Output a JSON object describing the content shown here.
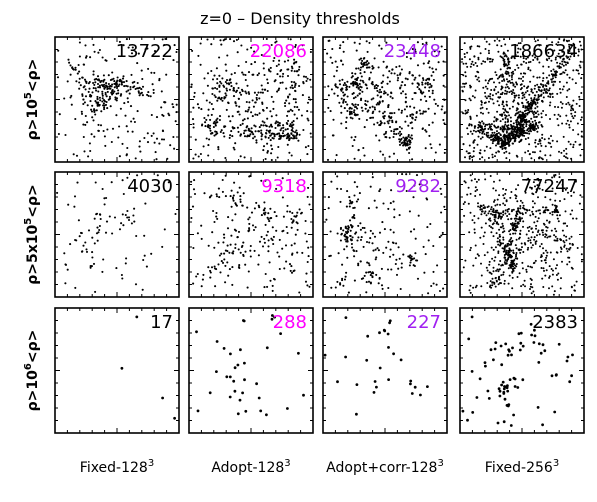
{
  "title": "z=0 – Density thresholds",
  "chart_data": {
    "type": "scatter",
    "title": "z=0 – Density thresholds",
    "columns": [
      {
        "label": "Fixed-128",
        "exp": "3"
      },
      {
        "label": "Adopt-128",
        "exp": "3"
      },
      {
        "label": "Adopt+corr-128",
        "exp": "3"
      },
      {
        "label": "Fixed-256",
        "exp": "3"
      }
    ],
    "rows": [
      {
        "pre": "ρ>10",
        "exp": "5",
        "post": "<ρ>"
      },
      {
        "pre": "ρ>5x10",
        "exp": "5",
        "post": "<ρ>"
      },
      {
        "pre": "ρ>10",
        "exp": "6",
        "post": "<ρ>"
      }
    ],
    "colors": {
      "black": "#000000",
      "magenta": "#ff00ff",
      "purple": "#a020f0"
    },
    "counts": [
      [
        {
          "value": "13722",
          "color": "#000000"
        },
        {
          "value": "22086",
          "color": "#ff00ff"
        },
        {
          "value": "23448",
          "color": "#a020f0"
        },
        {
          "value": "186634",
          "color": "#000000"
        }
      ],
      [
        {
          "value": "4030",
          "color": "#000000"
        },
        {
          "value": "9318",
          "color": "#ff00ff"
        },
        {
          "value": "9282",
          "color": "#a020f0"
        },
        {
          "value": "77247",
          "color": "#000000"
        }
      ],
      [
        {
          "value": "17",
          "color": "#000000"
        },
        {
          "value": "288",
          "color": "#ff00ff"
        },
        {
          "value": "227",
          "color": "#a020f0"
        },
        {
          "value": "2383",
          "color": "#000000"
        }
      ]
    ],
    "shown_points": [
      [
        360,
        520,
        520,
        1250
      ],
      [
        95,
        250,
        250,
        720
      ],
      [
        4,
        35,
        28,
        80
      ]
    ],
    "grid": false
  }
}
